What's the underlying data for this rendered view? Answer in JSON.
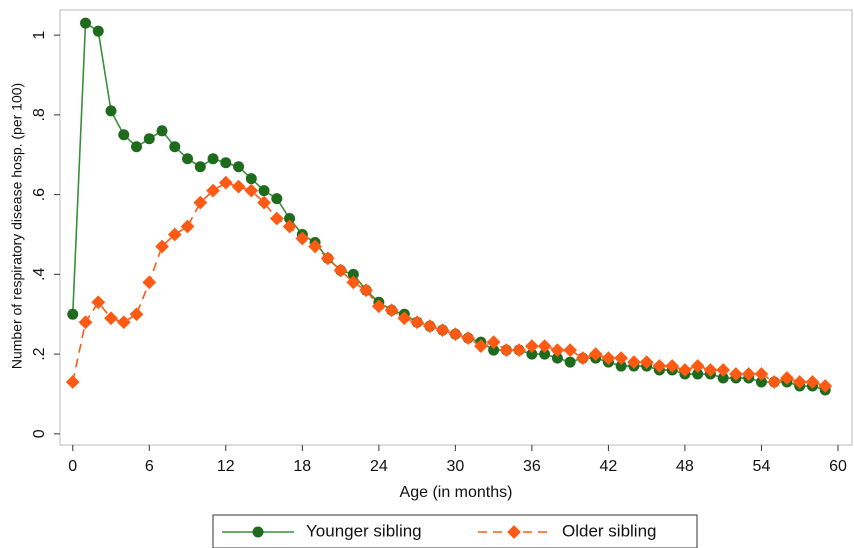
{
  "chart_data": {
    "type": "line",
    "x_label": "Age (in months)",
    "y_label": "Number of respiratory disease hosp. (per 100)",
    "x": [
      0,
      1,
      2,
      3,
      4,
      5,
      6,
      7,
      8,
      9,
      10,
      11,
      12,
      13,
      14,
      15,
      16,
      17,
      18,
      19,
      20,
      21,
      22,
      23,
      24,
      25,
      26,
      27,
      28,
      29,
      30,
      31,
      32,
      33,
      34,
      35,
      36,
      37,
      38,
      39,
      40,
      41,
      42,
      43,
      44,
      45,
      46,
      47,
      48,
      49,
      50,
      51,
      52,
      53,
      54,
      55,
      56,
      57,
      58,
      59
    ],
    "series": [
      {
        "name": "Younger sibling",
        "color": "#1e6b1e",
        "line_color": "#3a8f3a",
        "marker": "circle",
        "dashed": false,
        "values": [
          0.3,
          1.03,
          1.01,
          0.81,
          0.75,
          0.72,
          0.74,
          0.76,
          0.72,
          0.69,
          0.67,
          0.69,
          0.68,
          0.67,
          0.64,
          0.61,
          0.59,
          0.54,
          0.5,
          0.48,
          0.44,
          0.41,
          0.4,
          0.36,
          0.33,
          0.31,
          0.3,
          0.28,
          0.27,
          0.26,
          0.25,
          0.24,
          0.23,
          0.21,
          0.21,
          0.21,
          0.2,
          0.2,
          0.19,
          0.18,
          0.19,
          0.19,
          0.18,
          0.17,
          0.17,
          0.17,
          0.16,
          0.16,
          0.15,
          0.15,
          0.15,
          0.14,
          0.14,
          0.14,
          0.13,
          0.13,
          0.13,
          0.12,
          0.12,
          0.11
        ]
      },
      {
        "name": "Older sibling",
        "color": "#ff5a14",
        "line_color": "#ff5a14",
        "marker": "diamond",
        "dashed": true,
        "values": [
          0.13,
          0.28,
          0.33,
          0.29,
          0.28,
          0.3,
          0.38,
          0.47,
          0.5,
          0.52,
          0.58,
          0.61,
          0.63,
          0.62,
          0.61,
          0.58,
          0.54,
          0.52,
          0.49,
          0.47,
          0.44,
          0.41,
          0.38,
          0.36,
          0.32,
          0.31,
          0.29,
          0.28,
          0.27,
          0.26,
          0.25,
          0.24,
          0.22,
          0.23,
          0.21,
          0.21,
          0.22,
          0.22,
          0.21,
          0.21,
          0.19,
          0.2,
          0.19,
          0.19,
          0.18,
          0.18,
          0.17,
          0.17,
          0.16,
          0.17,
          0.16,
          0.16,
          0.15,
          0.15,
          0.15,
          0.13,
          0.14,
          0.13,
          0.13,
          0.12
        ]
      }
    ],
    "xlim": [
      -1,
      61.1
    ],
    "ylim": [
      -0.028,
      1.063
    ],
    "xticks": [
      0,
      6,
      12,
      18,
      24,
      30,
      36,
      42,
      48,
      54,
      60
    ],
    "yticks": [
      0,
      {
        "value": 0.2,
        "label": ".2"
      },
      {
        "value": 0.4,
        "label": ".4"
      },
      {
        "value": 0.6,
        "label": ".6"
      },
      {
        "value": 0.8,
        "label": ".8"
      },
      1
    ],
    "grid": false,
    "legend_position": "bottom"
  }
}
